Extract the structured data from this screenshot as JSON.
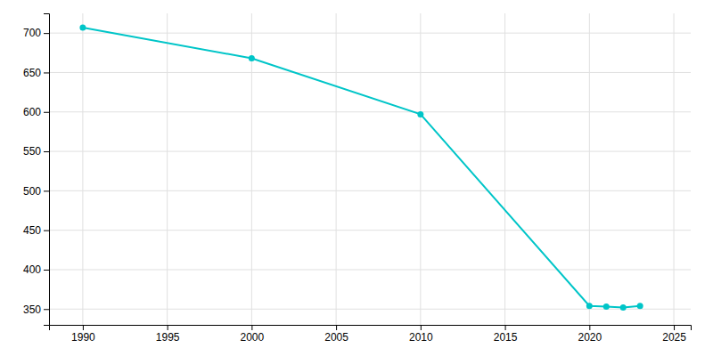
{
  "chart_data": {
    "type": "line",
    "x": [
      1990,
      2000,
      2010,
      2020,
      2021,
      2022,
      2023
    ],
    "values": [
      707,
      668,
      597,
      354,
      353,
      352,
      354
    ],
    "color": "#00C5C8",
    "marker": "circle",
    "xlim": [
      1988,
      2026
    ],
    "ylim": [
      330,
      725
    ],
    "xticks": [
      1990,
      1995,
      2000,
      2005,
      2010,
      2015,
      2020,
      2025
    ],
    "yticks": [
      350,
      400,
      450,
      500,
      550,
      600,
      650,
      700
    ],
    "grid": true
  }
}
